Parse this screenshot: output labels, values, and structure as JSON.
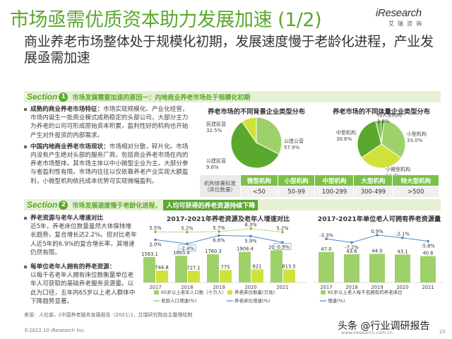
{
  "header": {
    "title": "市场亟需优质资本助力发展加速 (1/2)",
    "subtitle": "商业养老市场整体处于规模化初期，发展速度慢于老龄化进程，产业发展亟需加速",
    "logo_brand": "iResearch",
    "logo_cn": "艾瑞咨询"
  },
  "section1": {
    "label": "Section",
    "num": "1",
    "title": "市场发展需要加速的原因一：内地商业养老市场处于规模化初期",
    "bullets": [
      {
        "head": "成熟的商业养老市场特征：",
        "text": "市场实现规模化、产业化经营，市场内诞生一批商业模式成熟稳定的头部公司，大部分主力为养老的公司可形成原始资本积累，盈利性好的机构也开始产生对外投资的内部需求。"
      },
      {
        "head": "中国内地商业养老市场现状：",
        "text": "市场相对分散，碎片化。市场内没有产生绝对头部的服务厂商，包括商业养老市场在内的养老市场整体，其市场主体以中小微型企业为主。大部分参与者盈利性有限。市场内往往以仅依靠养老产业实现大额盈利，小微型机构依托成本优势可实现微幅盈利。"
      }
    ],
    "pie1": {
      "title": "养老市场的不同背景企业类型分布",
      "slices": [
        {
          "label": "民建民营",
          "value": 32.5,
          "display": "32.5%"
        },
        {
          "label": "公建公营",
          "value": 57.9,
          "display": "57.9%"
        },
        {
          "label": "公建民营",
          "value": 9.6,
          "display": "9.6%"
        }
      ]
    },
    "pie2": {
      "title": "养老市场的不同体量企业类型分布",
      "slices": [
        {
          "label": "特大型机构",
          "value": 1.8,
          "display": "1.8%"
        },
        {
          "label": "小型机构",
          "value": 33.0,
          "display": "33.0%"
        },
        {
          "label": "小微型机构",
          "value": 30.7,
          "display": "30.7%"
        },
        {
          "label": "中型机构",
          "value": 30.6,
          "display": "30.6%"
        },
        {
          "label": "大型机构",
          "value": 3.9,
          "display": ""
        }
      ]
    },
    "table": {
      "row_label": "机构体量标准（床位数量）",
      "headers": [
        "微型机构",
        "小型机构",
        "中型机构",
        "大型机构",
        "特大型机构"
      ],
      "values": [
        "<50",
        "50-99",
        "100-299",
        "300-499",
        ">500"
      ]
    }
  },
  "section2": {
    "label": "Section",
    "num": "2",
    "title": "市场发展速度慢于老龄化进程，",
    "highlight": "人均可获得的养老资源持续下降",
    "bullets": [
      {
        "head": "养老资源与老年人增速对比",
        "text": "近5年，养老床位数量虽然大体保持增长趋势，复合增长达2.2%。但对比老年人近5年的6.9%的复合增长率，其增速仍然有限。"
      },
      {
        "head": "每单位老年人拥有的养老资源：",
        "text": "以每千名老年人拥有床位数衡量单位老年人可获取的基础养老服务资源量。以此为口径，五年内65岁以上老人群体中下降趋势显著。"
      }
    ]
  },
  "chart_data": [
    {
      "type": "bar",
      "title": "2017-2021年养老资源及老年人增速对比",
      "categories": [
        "2017",
        "2018",
        "2019",
        "2020",
        "2021"
      ],
      "series": [
        {
          "name": "65岁以上老年人口数（十万人）",
          "type": "bar",
          "values": [
            1583.1,
            1665.8,
            1760.3,
            1906.4,
            2005.6
          ]
        },
        {
          "name": "养老床位数量(万张)",
          "type": "bar",
          "values": [
            744.8,
            727.1,
            775,
            821,
            813.5
          ]
        },
        {
          "name": "老龄人口增速(%)",
          "type": "line",
          "values": [
            5.5,
            5.2,
            5.7,
            8.3,
            5.2
          ],
          "labels": [
            "5.5%",
            "5.2%",
            "5.7%",
            "8.3%",
            "5.2%"
          ]
        },
        {
          "name": "养老床位增速(%)",
          "type": "line",
          "values": [
            2.0,
            -2.4,
            6.6,
            5.9,
            -0.9
          ],
          "labels": [
            "2.0%",
            "-2.4%",
            "6.6%",
            "5.9%",
            "-0.9%"
          ]
        }
      ],
      "legend": [
        "65岁以上老年人口数（十万人）",
        "养老床位数量(万张)",
        "老龄人口增速(%)",
        "养老床位增速(%)"
      ]
    },
    {
      "type": "bar",
      "title": "2017-2021年单位老人可拥有养老资源量",
      "categories": [
        "2017",
        "2018",
        "2019",
        "2020",
        "2021"
      ],
      "series": [
        {
          "name": "65岁以上老人每千名拥有的养老床位",
          "type": "bar",
          "values": [
            47.0,
            43.6,
            44.0,
            43.1,
            40.6
          ]
        },
        {
          "name": "增速(%)",
          "type": "line",
          "values": [
            -3.3,
            -7.2,
            0.9,
            -2.1,
            -5.8
          ],
          "labels": [
            "-3.3%",
            "-7.2%",
            "0.9%",
            "-2.1%",
            "-5.8%"
          ]
        }
      ],
      "legend": [
        "65岁以上老人每千名拥有的养老床位",
        "增速(%)"
      ]
    }
  ],
  "footer": {
    "source": "来源：人社部，《中国养老服务发展报告（2021）》，艾瑞研究院自主整理绘制",
    "copyright": "©2022.10 iResearch Inc.",
    "watermark": "头条 @行业调研报告",
    "website": "www.iresearch.com.cn",
    "page": "25"
  },
  "colors": {
    "green": "#5ba82e",
    "light_green": "#9fd16b",
    "yellow": "#cfe23a",
    "dark": "#444444"
  }
}
